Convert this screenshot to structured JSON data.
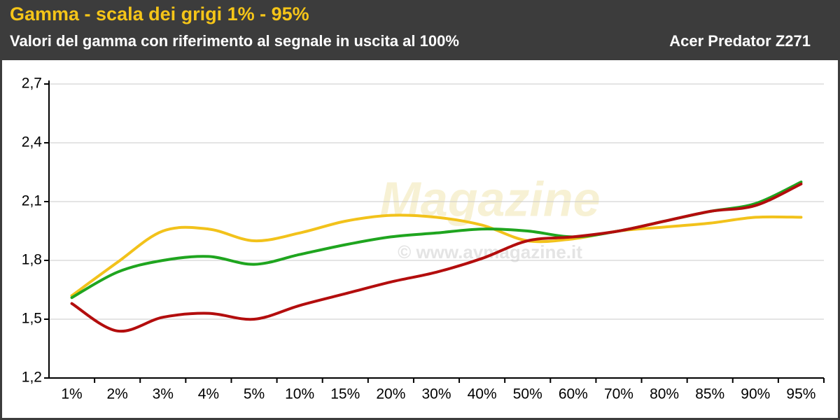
{
  "chart_data": {
    "type": "line",
    "title": "Gamma - scala dei grigi 1% - 95%",
    "subtitle": "Valori del gamma con riferimento al segnale in uscita al 100%",
    "annotation": "Acer Predator Z271",
    "watermark": "Magazine",
    "watermark_url": "© www.avmagazine.it",
    "categories": [
      "1%",
      "2%",
      "3%",
      "4%",
      "5%",
      "10%",
      "15%",
      "20%",
      "30%",
      "40%",
      "50%",
      "60%",
      "70%",
      "80%",
      "85%",
      "90%",
      "95%"
    ],
    "series": [
      {
        "color": "#f2c21b",
        "values": [
          1.62,
          1.79,
          1.95,
          1.96,
          1.9,
          1.94,
          2.0,
          2.03,
          2.02,
          1.98,
          1.9,
          1.91,
          1.95,
          1.97,
          1.99,
          2.02,
          2.02
        ]
      },
      {
        "color": "#1fa51f",
        "values": [
          1.61,
          1.74,
          1.8,
          1.82,
          1.78,
          1.83,
          1.88,
          1.92,
          1.94,
          1.96,
          1.95,
          1.92,
          1.95,
          2.0,
          2.05,
          2.09,
          2.2
        ]
      },
      {
        "color": "#b30d0d",
        "values": [
          1.58,
          1.44,
          1.51,
          1.53,
          1.5,
          1.57,
          1.63,
          1.69,
          1.74,
          1.81,
          1.9,
          1.92,
          1.95,
          2.0,
          2.05,
          2.08,
          2.19
        ]
      }
    ],
    "ylim": [
      1.2,
      2.7
    ],
    "yticks": [
      {
        "value": 1.2,
        "label": "1,2"
      },
      {
        "value": 1.5,
        "label": "1,5"
      },
      {
        "value": 1.8,
        "label": "1,8"
      },
      {
        "value": 2.1,
        "label": "2,1"
      },
      {
        "value": 2.4,
        "label": "2,4"
      },
      {
        "value": 2.7,
        "label": "2,7"
      }
    ],
    "grid": true
  }
}
